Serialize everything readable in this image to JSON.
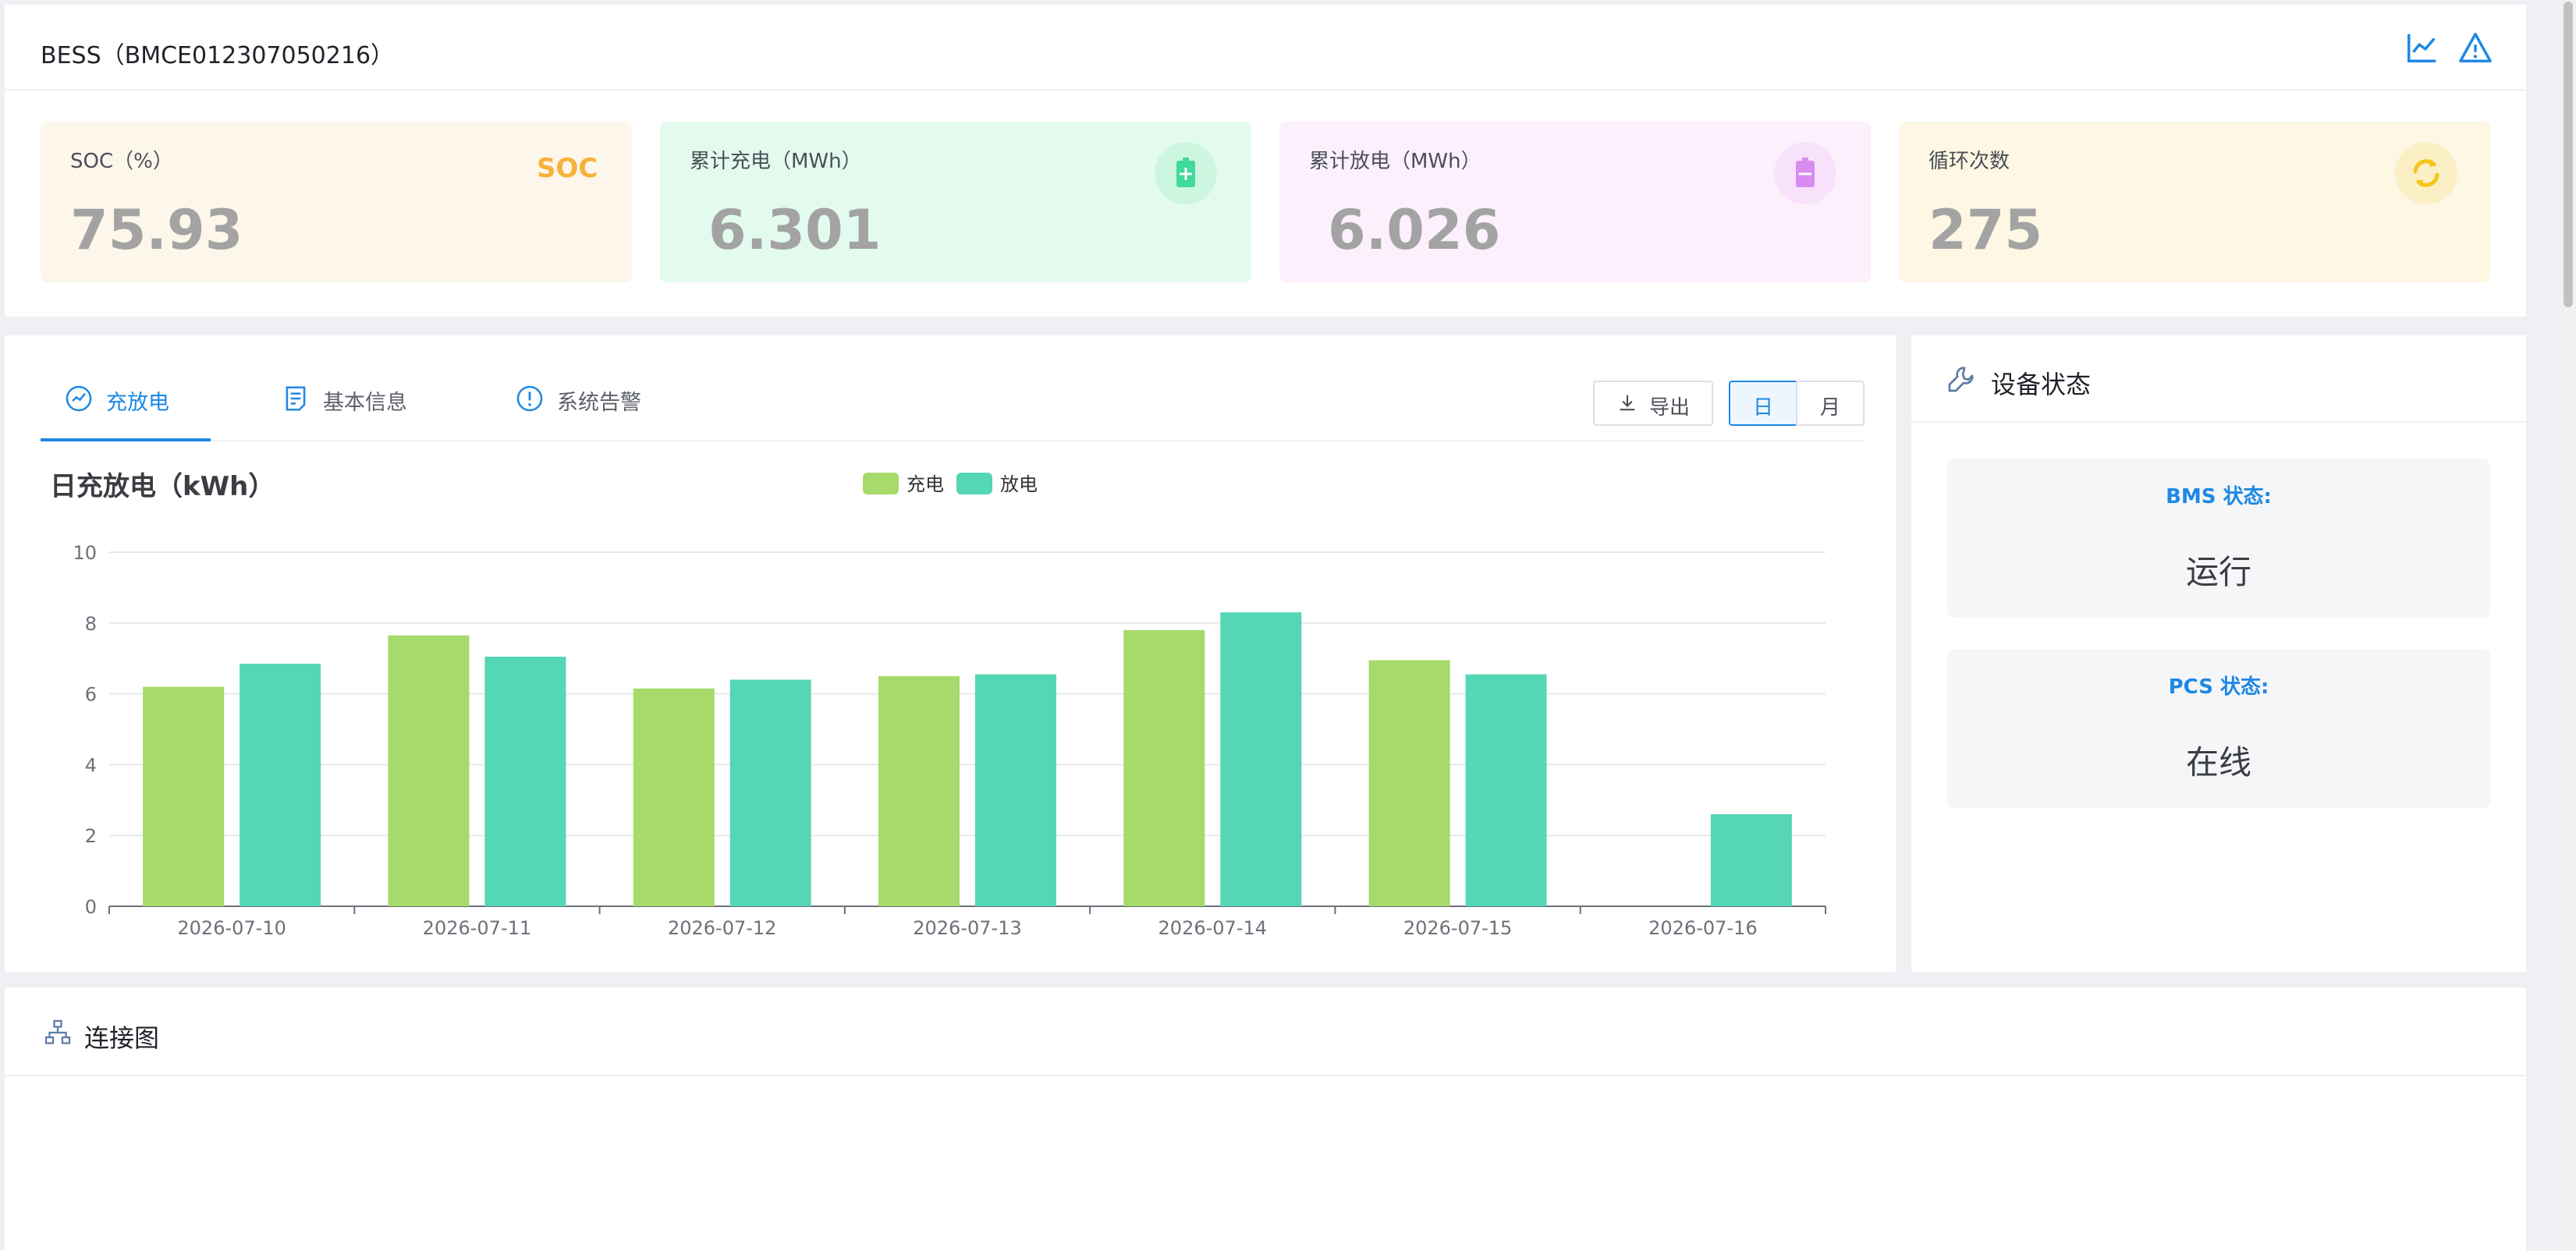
{
  "header": {
    "title": "BESS（BMCE012307050216）",
    "icons": [
      "line-chart-icon",
      "warning-icon"
    ]
  },
  "kpis": [
    {
      "label": "SOC（%）",
      "value": "75.93",
      "badge": "SOC",
      "icon": "soc-text-icon",
      "bg": "#fdf6eb",
      "accent": "#f7b23b"
    },
    {
      "label": "累计充电（MWh）",
      "value": "6.301",
      "icon": "battery-plus-icon",
      "bg": "#e3fbef",
      "accent": "#3fd99a"
    },
    {
      "label": "累计放电（MWh）",
      "value": "6.026",
      "icon": "battery-minus-icon",
      "bg": "#fdf0fd",
      "accent": "#d98cf0"
    },
    {
      "label": "循环次数",
      "value": "275",
      "icon": "cycle-icon",
      "bg": "#fdf7e3",
      "accent": "#f5c518"
    }
  ],
  "tabs": [
    {
      "label": "充放电",
      "icon": "trend-icon",
      "active": true
    },
    {
      "label": "基本信息",
      "icon": "document-icon",
      "active": false
    },
    {
      "label": "系统告警",
      "icon": "alert-circle-icon",
      "active": false
    }
  ],
  "toolbar": {
    "export_label": "导出",
    "day_label": "日",
    "month_label": "月"
  },
  "chart_data": {
    "type": "bar",
    "title": "日充放电（kWh）",
    "categories": [
      "2026-07-10",
      "2026-07-11",
      "2026-07-12",
      "2026-07-13",
      "2026-07-14",
      "2026-07-15",
      "2026-07-16"
    ],
    "series": [
      {
        "name": "充电",
        "color": "#a6da6a",
        "values": [
          6.2,
          7.65,
          6.15,
          6.5,
          7.8,
          6.95,
          null
        ]
      },
      {
        "name": "放电",
        "color": "#55d6b5",
        "values": [
          6.85,
          7.05,
          6.4,
          6.55,
          8.3,
          6.55,
          2.6
        ]
      }
    ],
    "ylim": [
      0,
      10
    ],
    "yticks": [
      0,
      2,
      4,
      6,
      8,
      10
    ],
    "grid": true,
    "legend": "top-center"
  },
  "status": {
    "title": "设备状态",
    "items": [
      {
        "key": "BMS 状态:",
        "value": "运行"
      },
      {
        "key": "PCS 状态:",
        "value": "在线"
      }
    ]
  },
  "connection": {
    "title": "连接图"
  }
}
